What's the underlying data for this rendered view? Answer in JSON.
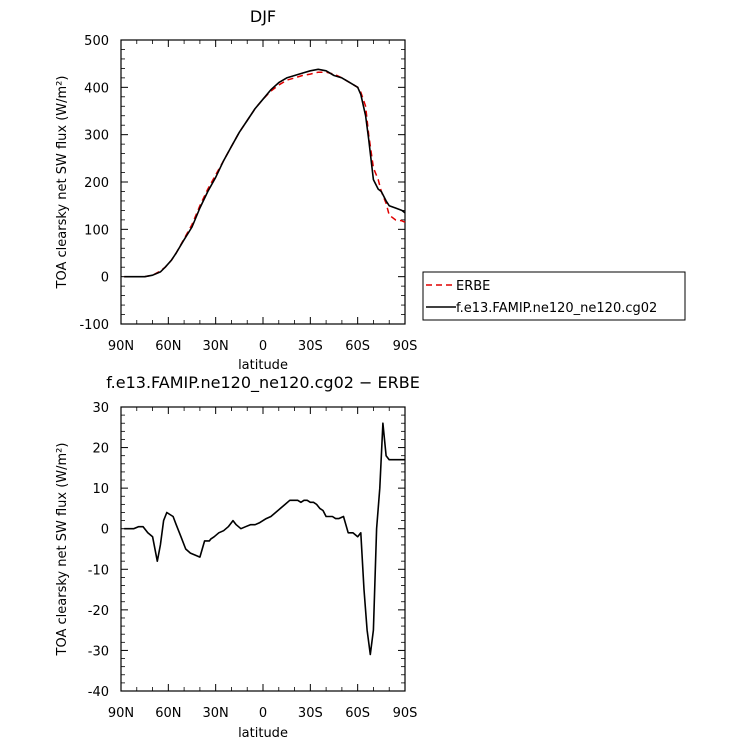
{
  "chart_data": [
    {
      "type": "line",
      "title": "DJF",
      "xlabel": "latitude",
      "ylabel": "TOA clearsky net SW flux (W/m²)",
      "xlim": [
        -90,
        90
      ],
      "ylim": [
        -100,
        500
      ],
      "x_ticks": [
        {
          "value": -90,
          "label": "90N"
        },
        {
          "value": -60,
          "label": "60N"
        },
        {
          "value": -30,
          "label": "30N"
        },
        {
          "value": 0,
          "label": "0"
        },
        {
          "value": 30,
          "label": "30S"
        },
        {
          "value": 60,
          "label": "60S"
        },
        {
          "value": 90,
          "label": "90S"
        }
      ],
      "y_ticks": [
        -100,
        0,
        100,
        200,
        300,
        400,
        500
      ],
      "legend_position": "outside-right-bottom",
      "series": [
        {
          "name": "ERBE",
          "color": "#e00000",
          "dash": true,
          "x": [
            -88,
            -80,
            -75,
            -70,
            -65,
            -62,
            -58,
            -55,
            -50,
            -45,
            -40,
            -35,
            -30,
            -25,
            -20,
            -15,
            -10,
            -5,
            0,
            5,
            10,
            15,
            20,
            25,
            30,
            35,
            40,
            45,
            50,
            55,
            60,
            62,
            65,
            67,
            70,
            73,
            75,
            78,
            80,
            84,
            88,
            90
          ],
          "y": [
            0,
            0,
            0,
            3,
            12,
            20,
            35,
            50,
            80,
            110,
            150,
            185,
            215,
            245,
            275,
            305,
            330,
            355,
            375,
            392,
            405,
            415,
            420,
            425,
            428,
            432,
            432,
            428,
            420,
            410,
            400,
            390,
            360,
            300,
            230,
            205,
            180,
            155,
            130,
            120,
            118,
            115
          ]
        },
        {
          "name": "f.e13.FAMIP.ne120_ne120.cg02",
          "color": "#000000",
          "dash": false,
          "x": [
            -88,
            -80,
            -75,
            -70,
            -65,
            -62,
            -58,
            -55,
            -50,
            -45,
            -40,
            -35,
            -30,
            -25,
            -20,
            -15,
            -10,
            -5,
            0,
            5,
            10,
            15,
            20,
            25,
            30,
            35,
            40,
            45,
            50,
            55,
            60,
            62,
            65,
            67,
            70,
            73,
            75,
            78,
            80,
            84,
            88,
            90
          ],
          "y": [
            0,
            0,
            0,
            3,
            10,
            20,
            35,
            50,
            78,
            105,
            145,
            180,
            210,
            245,
            275,
            305,
            330,
            355,
            375,
            395,
            410,
            420,
            425,
            430,
            435,
            438,
            435,
            425,
            420,
            410,
            400,
            385,
            340,
            290,
            205,
            185,
            180,
            160,
            150,
            145,
            140,
            135
          ]
        }
      ]
    },
    {
      "type": "line",
      "title": "f.e13.FAMIP.ne120_ne120.cg02 − ERBE",
      "xlabel": "latitude",
      "ylabel": "TOA clearsky net SW flux (W/m²)",
      "xlim": [
        -90,
        90
      ],
      "ylim": [
        -40,
        30
      ],
      "x_ticks": [
        {
          "value": -90,
          "label": "90N"
        },
        {
          "value": -60,
          "label": "60N"
        },
        {
          "value": -30,
          "label": "30N"
        },
        {
          "value": 0,
          "label": "0"
        },
        {
          "value": 30,
          "label": "30S"
        },
        {
          "value": 60,
          "label": "60S"
        },
        {
          "value": 90,
          "label": "90S"
        }
      ],
      "y_ticks": [
        -40,
        -30,
        -20,
        -10,
        0,
        10,
        20,
        30
      ],
      "series": [
        {
          "color": "#000000",
          "x": [
            -88,
            -85,
            -82,
            -79,
            -76,
            -73,
            -70,
            -67,
            -65,
            -63,
            -61,
            -59,
            -57,
            -55,
            -52,
            -49,
            -46,
            -43,
            -40,
            -37,
            -34,
            -33,
            -31,
            -28,
            -25,
            -22,
            -19,
            -17,
            -14,
            -11,
            -8,
            -5,
            -2,
            0,
            2,
            5,
            8,
            11,
            14,
            17,
            19,
            22,
            24,
            26,
            28,
            30,
            32,
            34,
            36,
            38,
            40,
            42,
            44,
            46,
            48,
            51,
            54,
            57,
            60,
            62,
            64,
            66,
            68,
            70,
            72,
            74,
            76,
            78,
            80,
            82,
            84,
            86,
            88,
            90
          ],
          "y": [
            0,
            0,
            0,
            0.5,
            0.5,
            -1,
            -2,
            -8,
            -4,
            2,
            4,
            3.5,
            3,
            1,
            -2,
            -5,
            -6,
            -6.5,
            -7,
            -3,
            -3,
            -2.5,
            -2,
            -1,
            -0.5,
            0.5,
            2,
            1,
            0,
            0.5,
            1,
            1,
            1.5,
            2,
            2.5,
            3,
            4,
            5,
            6,
            7,
            7,
            7,
            6.5,
            7,
            7,
            6.5,
            6.5,
            6,
            5,
            4.5,
            3,
            3,
            3,
            2.5,
            2.5,
            3,
            -1,
            -1,
            -2,
            -1,
            -15,
            -25,
            -31,
            -25,
            0,
            10,
            26,
            18,
            17,
            17,
            17,
            17,
            17,
            17
          ]
        }
      ]
    }
  ]
}
